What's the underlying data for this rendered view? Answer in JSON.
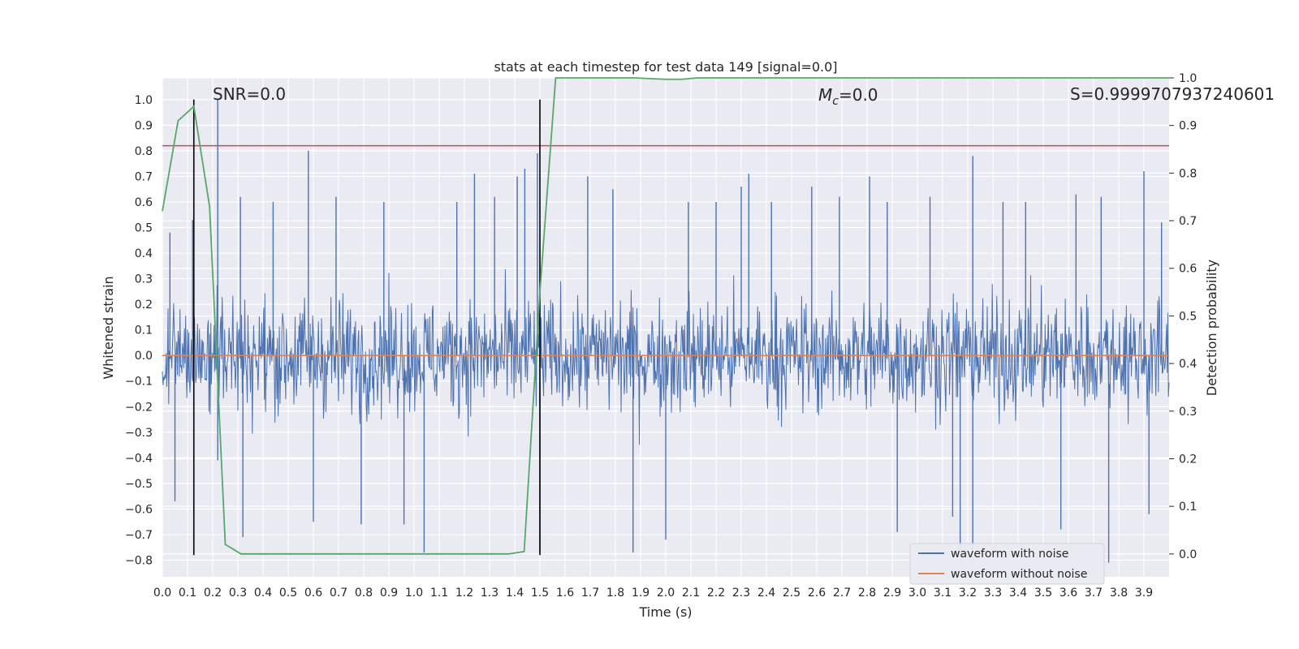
{
  "chart_data": {
    "type": "line",
    "title": "stats at each timestep for test data 149 [signal=0.0]",
    "xlabel": "Time (s)",
    "ylabel": "Whitened strain",
    "ylabel_right": "Detection probability",
    "xlim": [
      0.0,
      4.0
    ],
    "ylim": [
      -0.865,
      1.085
    ],
    "ylim_right": [
      -0.048,
      1.0
    ],
    "x_ticks": [
      "0.0",
      "0.1",
      "0.2",
      "0.3",
      "0.4",
      "0.5",
      "0.6",
      "0.7",
      "0.8",
      "0.9",
      "1.0",
      "1.1",
      "1.2",
      "1.3",
      "1.4",
      "1.5",
      "1.6",
      "1.7",
      "1.8",
      "1.9",
      "2.0",
      "2.1",
      "2.2",
      "2.3",
      "2.4",
      "2.5",
      "2.6",
      "2.7",
      "2.8",
      "2.9",
      "3.0",
      "3.1",
      "3.2",
      "3.3",
      "3.4",
      "3.5",
      "3.6",
      "3.7",
      "3.8",
      "3.9"
    ],
    "y_ticks": [
      "1.0",
      "0.9",
      "0.8",
      "0.7",
      "0.6",
      "0.5",
      "0.4",
      "0.3",
      "0.2",
      "0.1",
      "0.0",
      "−0.1",
      "−0.2",
      "−0.3",
      "−0.4",
      "−0.5",
      "−0.6",
      "−0.7",
      "−0.8"
    ],
    "y_ticks_right": [
      "1.0",
      "0.9",
      "0.8",
      "0.7",
      "0.6",
      "0.5",
      "0.4",
      "0.3",
      "0.2",
      "0.1",
      "0.0"
    ],
    "annotations": {
      "snr": "SNR=0.0",
      "mc": "=0.0",
      "mc_symbol": "M",
      "mc_subscript": "c",
      "s": "S=0.9999707937240601"
    },
    "threshold": {
      "value": 0.82,
      "axis": "left",
      "color": "#c44e52"
    },
    "vlines": [
      0.125,
      1.5
    ],
    "series": [
      {
        "name": "waveform with noise",
        "color": "#4c72b0",
        "style": "dense noise trace",
        "envelope": [
          0.45,
          -0.45
        ],
        "spikes": [
          {
            "x": 0.03,
            "y": 0.48
          },
          {
            "x": 0.05,
            "y": -0.57
          },
          {
            "x": 0.12,
            "y": 0.53
          },
          {
            "x": 0.22,
            "y": 1.0
          },
          {
            "x": 0.22,
            "y": -0.41
          },
          {
            "x": 0.32,
            "y": -0.71
          },
          {
            "x": 0.31,
            "y": 0.62
          },
          {
            "x": 0.44,
            "y": 0.6
          },
          {
            "x": 0.58,
            "y": 0.8
          },
          {
            "x": 0.6,
            "y": -0.65
          },
          {
            "x": 0.69,
            "y": 0.62
          },
          {
            "x": 0.79,
            "y": -0.66
          },
          {
            "x": 0.88,
            "y": 0.6
          },
          {
            "x": 0.96,
            "y": -0.66
          },
          {
            "x": 1.04,
            "y": -0.77
          },
          {
            "x": 1.17,
            "y": 0.6
          },
          {
            "x": 1.24,
            "y": 0.71
          },
          {
            "x": 1.32,
            "y": 0.62
          },
          {
            "x": 1.41,
            "y": 0.7
          },
          {
            "x": 1.44,
            "y": 0.73
          },
          {
            "x": 1.49,
            "y": 0.79
          },
          {
            "x": 1.5,
            "y": -0.77
          },
          {
            "x": 1.69,
            "y": 0.7
          },
          {
            "x": 1.79,
            "y": 0.65
          },
          {
            "x": 1.87,
            "y": -0.77
          },
          {
            "x": 2.0,
            "y": -0.72
          },
          {
            "x": 2.09,
            "y": 0.6
          },
          {
            "x": 2.2,
            "y": 0.6
          },
          {
            "x": 2.3,
            "y": 0.66
          },
          {
            "x": 2.33,
            "y": 0.71
          },
          {
            "x": 2.42,
            "y": 0.6
          },
          {
            "x": 2.58,
            "y": 0.66
          },
          {
            "x": 2.69,
            "y": 0.62
          },
          {
            "x": 2.81,
            "y": 0.7
          },
          {
            "x": 2.88,
            "y": 0.6
          },
          {
            "x": 2.92,
            "y": -0.69
          },
          {
            "x": 3.05,
            "y": 0.62
          },
          {
            "x": 3.14,
            "y": -0.63
          },
          {
            "x": 3.17,
            "y": -0.81
          },
          {
            "x": 3.22,
            "y": -0.81
          },
          {
            "x": 3.22,
            "y": 0.78
          },
          {
            "x": 3.34,
            "y": 0.6
          },
          {
            "x": 3.43,
            "y": 0.6
          },
          {
            "x": 3.57,
            "y": -0.68
          },
          {
            "x": 3.63,
            "y": 0.63
          },
          {
            "x": 3.73,
            "y": 0.62
          },
          {
            "x": 3.76,
            "y": -0.81
          },
          {
            "x": 3.9,
            "y": 0.72
          },
          {
            "x": 3.92,
            "y": -0.62
          },
          {
            "x": 3.97,
            "y": 0.52
          }
        ]
      },
      {
        "name": "waveform without noise",
        "color": "#dd8452",
        "x": [
          0.0,
          4.0
        ],
        "y": [
          0.0,
          0.0
        ]
      },
      {
        "color": "#55a868",
        "axis": "right",
        "x": [
          0.0,
          0.0625,
          0.125,
          0.1875,
          0.25,
          0.3125,
          0.375,
          1.375,
          1.4375,
          1.5,
          1.5625,
          1.875,
          2.0,
          2.0625,
          2.125,
          4.0
        ],
        "y": [
          0.72,
          0.91,
          0.94,
          0.73,
          0.02,
          0.0,
          0.0,
          0.0,
          0.005,
          0.55,
          1.0,
          1.0,
          0.997,
          0.997,
          1.0,
          1.0
        ]
      }
    ],
    "legend": {
      "position": "lower-right",
      "entries": [
        "waveform with noise",
        "waveform without noise"
      ]
    },
    "grid": true
  }
}
